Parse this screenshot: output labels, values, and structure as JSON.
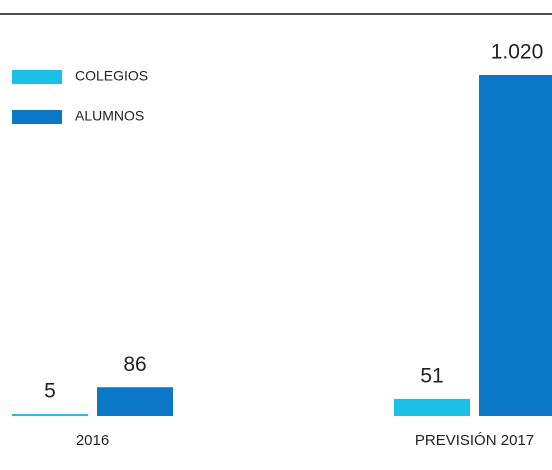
{
  "chart_data": {
    "type": "bar",
    "categories": [
      "2016",
      "PREVISIÓN 2017"
    ],
    "series": [
      {
        "name": "COLEGIOS",
        "color": "#1cbfe6",
        "values": [
          5,
          51
        ]
      },
      {
        "name": "ALUMNOS",
        "color": "#0a78c6",
        "values": [
          86,
          1020
        ],
        "value_labels": [
          "86",
          "1.020"
        ]
      }
    ]
  }
}
